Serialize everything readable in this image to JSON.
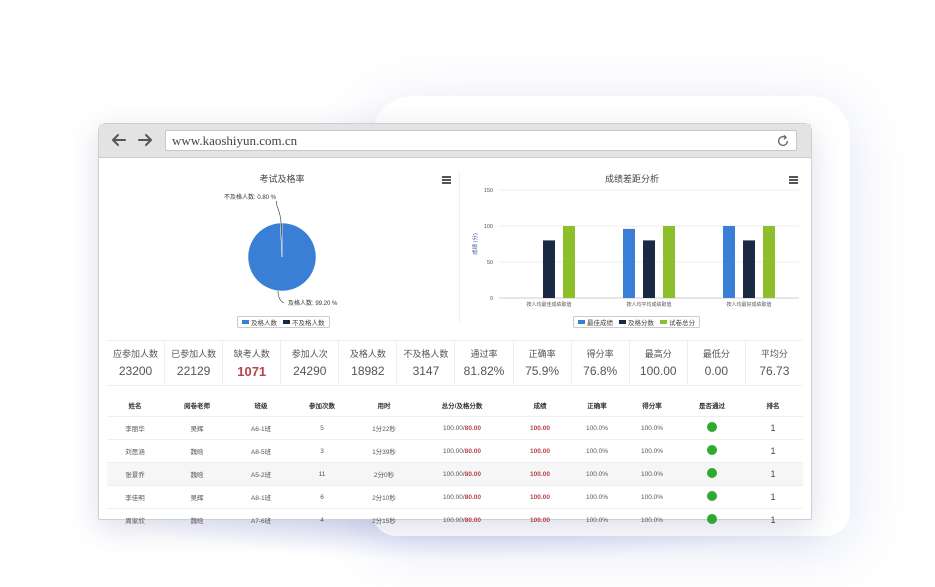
{
  "browser": {
    "url": "www.kaoshiyun.com.cn"
  },
  "pie_panel": {
    "title": "考试及格率",
    "fail_label": "不及格人数: 0.80 %",
    "pass_label": "及格人数: 99.20 %",
    "legend": [
      "及格人数",
      "不及格人数"
    ],
    "colors": [
      "#3a7fd6",
      "#1b2a44"
    ]
  },
  "bar_panel": {
    "title": "成绩差距分析",
    "ylabel": "成绩 (分)",
    "legend": [
      "最佳成绩",
      "及格分数",
      "试卷总分"
    ],
    "colors": [
      "#3a7fd6",
      "#1b2a44",
      "#8cbf2a"
    ]
  },
  "chart_data": [
    {
      "type": "pie",
      "title": "考试及格率",
      "labels": [
        "及格人数",
        "不及格人数"
      ],
      "values": [
        99.2,
        0.8
      ]
    },
    {
      "type": "bar",
      "title": "成绩差距分析",
      "ylabel": "成绩 (分)",
      "ylim": [
        0,
        150
      ],
      "yticks": [
        0,
        50,
        100,
        150
      ],
      "categories": [
        "按人均最佳成绩取值",
        "按人均平均成绩取值",
        "按人均最好成绩取值"
      ],
      "series": [
        {
          "name": "最佳成绩",
          "values": [
            null,
            96,
            100
          ]
        },
        {
          "name": "及格分数",
          "values": [
            80,
            80,
            80
          ]
        },
        {
          "name": "试卷总分",
          "values": [
            100,
            100,
            100
          ]
        }
      ]
    }
  ],
  "stats": [
    {
      "label": "应参加人数",
      "value": "23200",
      "highlight": false
    },
    {
      "label": "已参加人数",
      "value": "22129",
      "highlight": false
    },
    {
      "label": "缺考人数",
      "value": "1071",
      "highlight": true
    },
    {
      "label": "参加人次",
      "value": "24290",
      "highlight": false
    },
    {
      "label": "及格人数",
      "value": "18982",
      "highlight": false
    },
    {
      "label": "不及格人数",
      "value": "3147",
      "highlight": false
    },
    {
      "label": "通过率",
      "value": "81.82%",
      "highlight": false
    },
    {
      "label": "正确率",
      "value": "75.9%",
      "highlight": false
    },
    {
      "label": "得分率",
      "value": "76.8%",
      "highlight": false
    },
    {
      "label": "最高分",
      "value": "100.00",
      "highlight": false
    },
    {
      "label": "最低分",
      "value": "0.00",
      "highlight": false
    },
    {
      "label": "平均分",
      "value": "76.73",
      "highlight": false
    }
  ],
  "table": {
    "headers": [
      "姓名",
      "阅卷老师",
      "班级",
      "参加次数",
      "用时",
      "总分/及格分数",
      "成绩",
      "正确率",
      "得分率",
      "是否通过",
      "排名"
    ],
    "rows": [
      {
        "name": "李丽华",
        "teacher": "吴辉",
        "class": "A6-1班",
        "times": "5",
        "duration": "1分22秒",
        "total": "100.00/",
        "pass": "80.00",
        "score": "100.00",
        "correct": "100.0%",
        "rate": "100.0%",
        "rank": "1"
      },
      {
        "name": "刘思涵",
        "teacher": "魏晗",
        "class": "A8-5班",
        "times": "3",
        "duration": "1分39秒",
        "total": "100.00/",
        "pass": "80.00",
        "score": "100.00",
        "correct": "100.0%",
        "rate": "100.0%",
        "rank": "1"
      },
      {
        "name": "张景乔",
        "teacher": "魏晗",
        "class": "A5-2班",
        "times": "11",
        "duration": "2分0秒",
        "total": "100.00/",
        "pass": "80.00",
        "score": "100.00",
        "correct": "100.0%",
        "rate": "100.0%",
        "rank": "1"
      },
      {
        "name": "李佳明",
        "teacher": "吴辉",
        "class": "A8-1班",
        "times": "6",
        "duration": "2分10秒",
        "total": "100.00/",
        "pass": "80.00",
        "score": "100.00",
        "correct": "100.0%",
        "rate": "100.0%",
        "rank": "1"
      },
      {
        "name": "周家欣",
        "teacher": "魏晗",
        "class": "A7-6班",
        "times": "4",
        "duration": "2分15秒",
        "total": "100.00/",
        "pass": "80.00",
        "score": "100.00",
        "correct": "100.0%",
        "rate": "100.0%",
        "rank": "1"
      }
    ]
  }
}
